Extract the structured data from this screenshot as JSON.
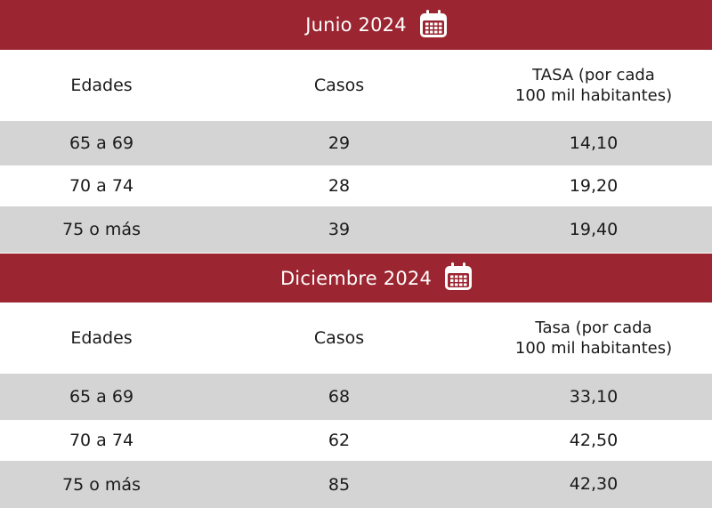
{
  "colors": {
    "banner": "#9b2530",
    "stripe": "#d4d4d4",
    "text": "#1a1a1a"
  },
  "tables": [
    {
      "title": "Junio 2024",
      "icon": "calendar-icon",
      "headers": {
        "ages": "Edades",
        "cases": "Casos",
        "rate_line1": "TASA (por cada",
        "rate_line2": "100 mil habitantes)"
      },
      "rows": [
        {
          "age": "65 a 69",
          "cases": "29",
          "rate": "14,10"
        },
        {
          "age": "70 a 74",
          "cases": "28",
          "rate": "19,20"
        },
        {
          "age": "75 o más",
          "cases": "39",
          "rate": "19,40"
        }
      ]
    },
    {
      "title": "Diciembre 2024",
      "icon": "calendar-icon",
      "headers": {
        "ages": "Edades",
        "cases": "Casos",
        "rate_line1": "Tasa (por cada",
        "rate_line2": "100 mil habitantes)"
      },
      "rows": [
        {
          "age": "65 a 69",
          "cases": "68",
          "rate": "33,10"
        },
        {
          "age": "70 a 74",
          "cases": "62",
          "rate": "42,50"
        },
        {
          "age": "75 o más",
          "cases": "85",
          "rate": "42,30"
        }
      ]
    }
  ]
}
